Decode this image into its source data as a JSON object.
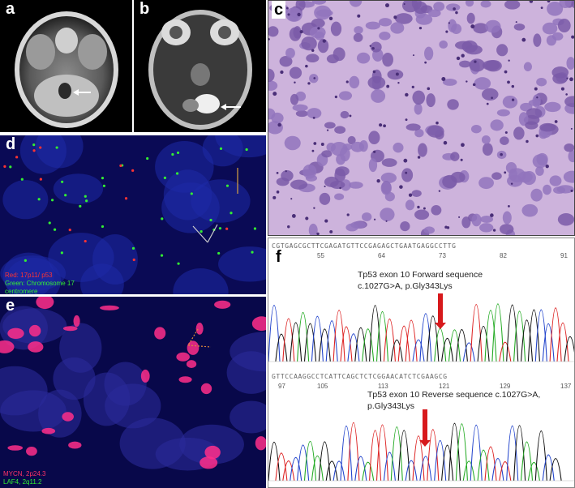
{
  "panels": {
    "a": {
      "label": "a"
    },
    "b": {
      "label": "b"
    },
    "c": {
      "label": "c"
    },
    "d": {
      "label": "d",
      "legend_red": "Red: 17p11/ p53",
      "legend_green_1": "Green: Chromosome 17",
      "legend_green_2": "centromere"
    },
    "e": {
      "label": "e",
      "legend_red": "MYCN, 2p24.3",
      "legend_green": "LAF4, 2q11.2"
    },
    "f": {
      "label": "f",
      "forward": {
        "seq": "CGTGAGCGCTTCGAGATGTTCCGAGAGCTGAATGAGGCCTTG",
        "positions": [
          "55",
          "64",
          "73",
          "82",
          "91"
        ],
        "title_line1": "Tp53 exon 10 Forward sequence",
        "title_line2": "c.1027G>A, p.Gly343Lys"
      },
      "reverse": {
        "seq": "GTTCCAAGGCCTCATTCAGCTCTCGGAACATCTCGAAGCG",
        "positions": [
          "105",
          "113",
          "121",
          "129",
          "137"
        ],
        "first_pos": "97",
        "title_line1": "Tp53 exon 10 Reverse sequence c.1027G>A,",
        "title_line2": "p.Gly343Lys"
      }
    }
  },
  "colors": {
    "arrow_red": "#d7191c",
    "trace_green": "#22aa22",
    "trace_blue": "#2244cc",
    "trace_red": "#dd2222",
    "trace_black": "#111111",
    "fish_bg": "#0a0a55",
    "he_bg": "#cdb3dc"
  }
}
